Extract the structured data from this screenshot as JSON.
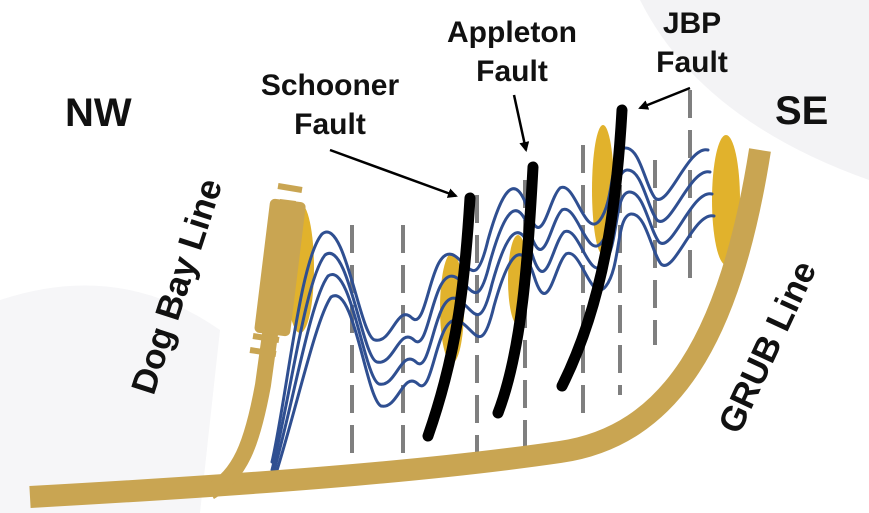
{
  "labels": {
    "nw": "NW",
    "se": "SE",
    "dog_bay_line": "Dog Bay Line",
    "grub_line": "GRUB Line",
    "schooner_fault": [
      "Schooner",
      "Fault"
    ],
    "appleton_fault": [
      "Appleton",
      "Fault"
    ],
    "jbp_fault": [
      "JBP",
      "Fault"
    ]
  },
  "colors": {
    "background": "#ffffff",
    "tan_line": "#c9a552",
    "gold_zone": "#e1b22c",
    "fold_lines": "#2f4f91",
    "faults": "#000000",
    "dashed_lines": "#7f7f7f",
    "text": "#111111"
  }
}
